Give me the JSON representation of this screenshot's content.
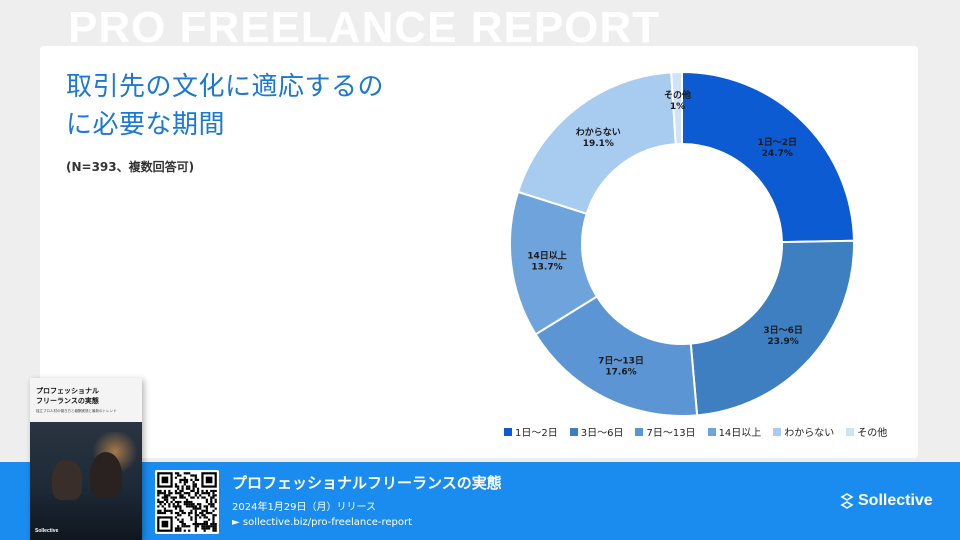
{
  "watermark": "PRO FREELANCE REPORT",
  "title_lines": [
    "取引先の文化に適応するの",
    "に必要な期間"
  ],
  "note": "(N=393、複数回答可)",
  "chart_data": {
    "type": "pie",
    "donut": true,
    "categories": [
      "1日〜2日",
      "3日〜6日",
      "7日〜13日",
      "14日以上",
      "わからない",
      "その他"
    ],
    "values": [
      24.7,
      23.9,
      17.6,
      13.7,
      19.1,
      1.0
    ],
    "value_labels": [
      "24.7%",
      "23.9%",
      "17.6%",
      "13.7%",
      "19.1%",
      "1%"
    ],
    "colors": [
      "#0d5bd3",
      "#3e7fc1",
      "#5b95d4",
      "#6fa3dc",
      "#a8cbf0",
      "#cfe2f7"
    ],
    "legend_position": "bottom",
    "start_angle_deg": 0,
    "direction": "clockwise"
  },
  "footer": {
    "title": "プロフェッショナルフリーランスの実態",
    "date": "2024年1月29日（月）リリース",
    "link": "► sollective.biz/pro-freelance-report",
    "brand": "Sollective",
    "background_color": "#1a8cf0"
  },
  "book": {
    "title": "プロフェッショナル\nフリーランスの実態",
    "subtitle": "独立プロ人材の働き方と報酬実態と最新のトレンド",
    "logo": "Sollective"
  }
}
